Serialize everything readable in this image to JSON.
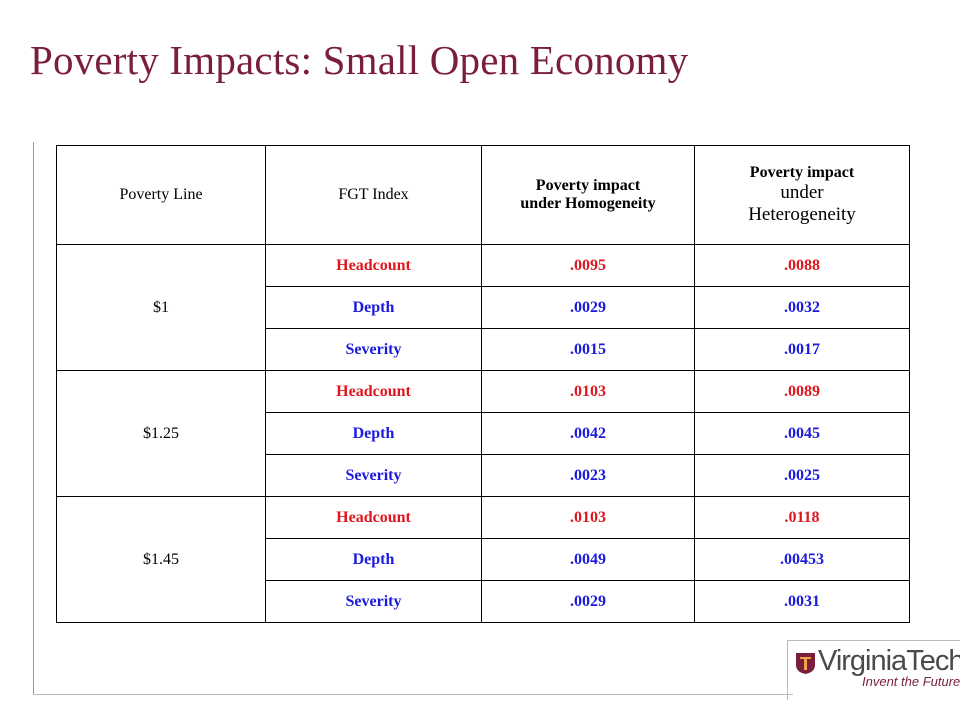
{
  "slide": {
    "title": "Poverty Impacts: Small Open Economy"
  },
  "table": {
    "headers": {
      "poverty_line": "Poverty Line",
      "fgt_index": "FGT Index",
      "homogeneity_line1": "Poverty impact",
      "homogeneity_line2": "under Homogeneity",
      "heterogeneity_line1": "Poverty impact",
      "heterogeneity_line2": "under",
      "heterogeneity_line3": "Heterogeneity"
    },
    "groups": [
      {
        "poverty_line": "$1",
        "rows": [
          {
            "index": "Headcount",
            "homogeneity": ".0095",
            "heterogeneity": ".0088"
          },
          {
            "index": "Depth",
            "homogeneity": ".0029",
            "heterogeneity": ".0032"
          },
          {
            "index": "Severity",
            "homogeneity": ".0015",
            "heterogeneity": ".0017"
          }
        ]
      },
      {
        "poverty_line": "$1.25",
        "rows": [
          {
            "index": "Headcount",
            "homogeneity": ".0103",
            "heterogeneity": ".0089"
          },
          {
            "index": "Depth",
            "homogeneity": ".0042",
            "heterogeneity": ".0045"
          },
          {
            "index": "Severity",
            "homogeneity": ".0023",
            "heterogeneity": ".0025"
          }
        ]
      },
      {
        "poverty_line": "$1.45",
        "rows": [
          {
            "index": "Headcount",
            "homogeneity": ".0103",
            "heterogeneity": ".0118"
          },
          {
            "index": "Depth",
            "homogeneity": ".0049",
            "heterogeneity": ".00453"
          },
          {
            "index": "Severity",
            "homogeneity": ".0029",
            "heterogeneity": ".0031"
          }
        ]
      }
    ]
  },
  "logo": {
    "name_part1": "Virginia",
    "name_part2": "Tech",
    "tagline": "Invent the Future"
  },
  "colors": {
    "title": "#7a1f3b",
    "headcount": "#e0161e",
    "depth_severity": "#1a1adf"
  }
}
